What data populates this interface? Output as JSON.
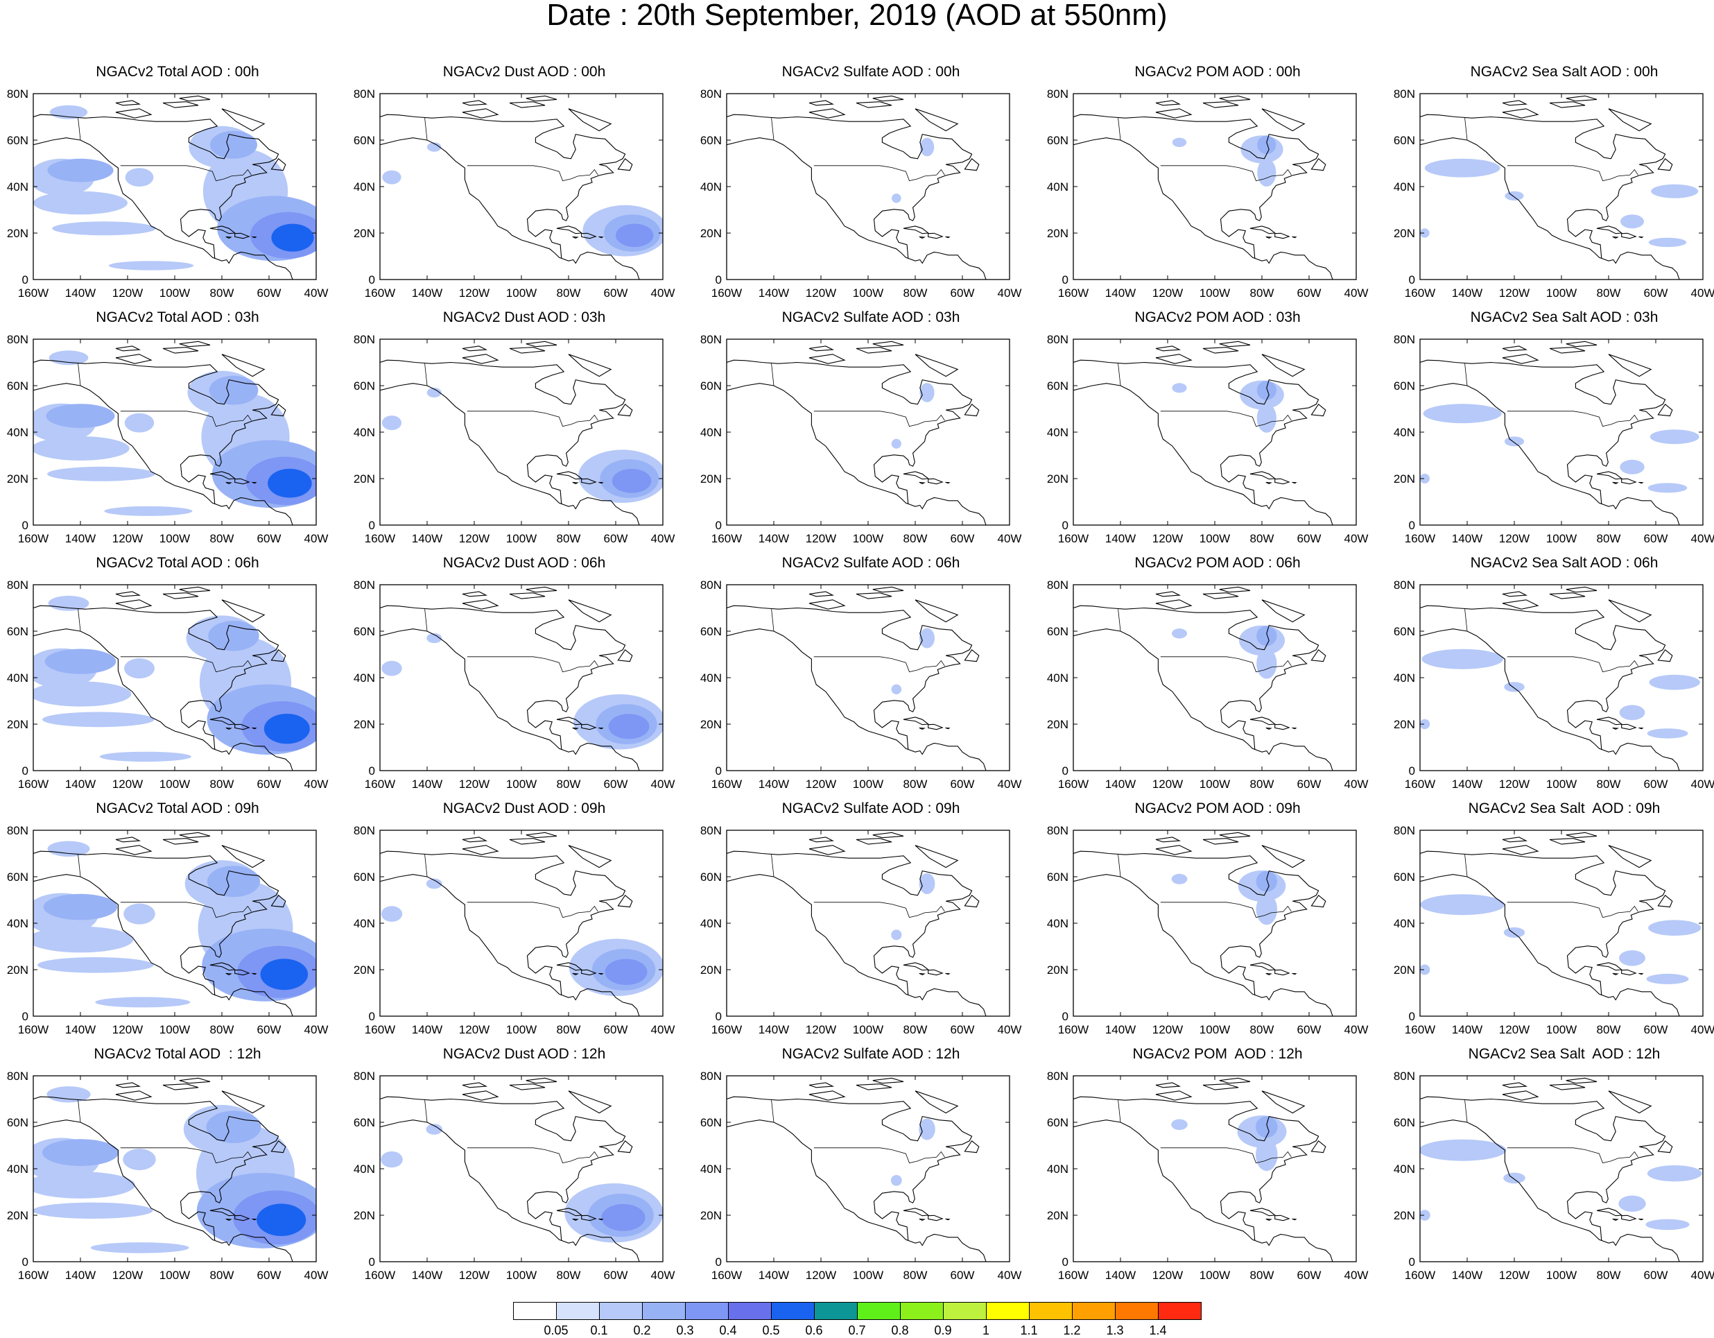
{
  "title": "Date : 20th September, 2019 (AOD at 550nm)",
  "map": {
    "x_ticks": [
      "160W",
      "140W",
      "120W",
      "100W",
      "80W",
      "60W",
      "40W"
    ],
    "y_ticks": [
      "0",
      "20N",
      "40N",
      "60N",
      "80N"
    ],
    "lon_range": [
      -160,
      -40
    ],
    "lat_range": [
      0,
      80
    ]
  },
  "panels": [
    [
      {
        "title": "NGACv2 Total AOD : 00h",
        "field": "total"
      },
      {
        "title": "NGACv2 Dust AOD : 00h",
        "field": "dust"
      },
      {
        "title": "NGACv2 Sulfate AOD : 00h",
        "field": "sulfate"
      },
      {
        "title": "NGACv2 POM AOD : 00h",
        "field": "pom"
      },
      {
        "title": "NGACv2 Sea Salt AOD : 00h",
        "field": "seasalt"
      }
    ],
    [
      {
        "title": "NGACv2 Total AOD : 03h",
        "field": "total"
      },
      {
        "title": "NGACv2 Dust AOD : 03h",
        "field": "dust"
      },
      {
        "title": "NGACv2 Sulfate AOD : 03h",
        "field": "sulfate"
      },
      {
        "title": "NGACv2 POM AOD : 03h",
        "field": "pom"
      },
      {
        "title": "NGACv2 Sea Salt AOD : 03h",
        "field": "seasalt"
      }
    ],
    [
      {
        "title": "NGACv2 Total AOD : 06h",
        "field": "total"
      },
      {
        "title": "NGACv2 Dust AOD : 06h",
        "field": "dust"
      },
      {
        "title": "NGACv2 Sulfate AOD : 06h",
        "field": "sulfate"
      },
      {
        "title": "NGACv2 POM AOD : 06h",
        "field": "pom"
      },
      {
        "title": "NGACv2 Sea Salt AOD : 06h",
        "field": "seasalt"
      }
    ],
    [
      {
        "title": "NGACv2 Total AOD : 09h",
        "field": "total"
      },
      {
        "title": "NGACv2 Dust AOD : 09h",
        "field": "dust"
      },
      {
        "title": "NGACv2 Sulfate AOD : 09h",
        "field": "sulfate"
      },
      {
        "title": "NGACv2 POM AOD : 09h",
        "field": "pom"
      },
      {
        "title": "NGACv2 Sea Salt  AOD : 09h",
        "field": "seasalt"
      }
    ],
    [
      {
        "title": "NGACv2 Total AOD  : 12h",
        "field": "total"
      },
      {
        "title": "NGACv2 Dust AOD : 12h",
        "field": "dust"
      },
      {
        "title": "NGACv2 Sulfate AOD : 12h",
        "field": "sulfate"
      },
      {
        "title": "NGACv2 POM  AOD : 12h",
        "field": "pom"
      },
      {
        "title": "NGACv2 Sea Salt  AOD : 12h",
        "field": "seasalt"
      }
    ]
  ],
  "colorbar": {
    "labels": [
      "0.05",
      "0.1",
      "0.2",
      "0.3",
      "0.4",
      "0.5",
      "0.6",
      "0.7",
      "0.8",
      "0.9",
      "1",
      "1.1",
      "1.2",
      "1.3",
      "1.4"
    ],
    "colors": [
      "#ffffff",
      "#d6e2fb",
      "#b6c9f8",
      "#98b2f6",
      "#7e96f4",
      "#6870ec",
      "#1a63f0",
      "#0d9696",
      "#5ff01a",
      "#8cf01a",
      "#bef03e",
      "#ffff00",
      "#ffc200",
      "#ffa000",
      "#ff7800",
      "#ff2a10"
    ]
  },
  "aerosol_fields": {
    "total": [
      {
        "lon": -50,
        "lat": 18,
        "value": 0.5,
        "rlon": 9,
        "rlat": 6
      },
      {
        "lon": -52,
        "lat": 19,
        "value": 0.3,
        "rlon": 16,
        "rlat": 10
      },
      {
        "lon": -58,
        "lat": 22,
        "value": 0.2,
        "rlon": 24,
        "rlat": 14
      },
      {
        "lon": -70,
        "lat": 38,
        "value": 0.1,
        "rlon": 18,
        "rlat": 18
      },
      {
        "lon": -75,
        "lat": 58,
        "value": 0.2,
        "rlon": 10,
        "rlat": 6
      },
      {
        "lon": -80,
        "lat": 57,
        "value": 0.1,
        "rlon": 14,
        "rlat": 9
      },
      {
        "lon": -140,
        "lat": 47,
        "value": 0.2,
        "rlon": 14,
        "rlat": 5
      },
      {
        "lon": -148,
        "lat": 44,
        "value": 0.1,
        "rlon": 14,
        "rlat": 8
      },
      {
        "lon": -140,
        "lat": 33,
        "value": 0.1,
        "rlon": 20,
        "rlat": 5
      },
      {
        "lon": -130,
        "lat": 22,
        "value": 0.1,
        "rlon": 22,
        "rlat": 3
      },
      {
        "lon": -145,
        "lat": 72,
        "value": 0.1,
        "rlon": 8,
        "rlat": 3
      },
      {
        "lon": -110,
        "lat": 6,
        "value": 0.1,
        "rlon": 18,
        "rlat": 2
      },
      {
        "lon": -115,
        "lat": 44,
        "value": 0.1,
        "rlon": 6,
        "rlat": 4
      }
    ],
    "dust": [
      {
        "lon": -52,
        "lat": 19,
        "value": 0.3,
        "rlon": 8,
        "rlat": 5
      },
      {
        "lon": -53,
        "lat": 20,
        "value": 0.2,
        "rlon": 12,
        "rlat": 8
      },
      {
        "lon": -56,
        "lat": 21,
        "value": 0.1,
        "rlon": 18,
        "rlat": 11
      },
      {
        "lon": -155,
        "lat": 44,
        "value": 0.1,
        "rlon": 4,
        "rlat": 3
      },
      {
        "lon": -137,
        "lat": 57,
        "value": 0.1,
        "rlon": 3,
        "rlat": 2
      }
    ],
    "sulfate": [
      {
        "lon": -75,
        "lat": 57,
        "value": 0.1,
        "rlon": 3,
        "rlat": 4
      },
      {
        "lon": -88,
        "lat": 35,
        "value": 0.1,
        "rlon": 2,
        "rlat": 2
      }
    ],
    "pom": [
      {
        "lon": -78,
        "lat": 58,
        "value": 0.2,
        "rlon": 4,
        "rlat": 4
      },
      {
        "lon": -80,
        "lat": 56,
        "value": 0.1,
        "rlon": 9,
        "rlat": 6
      },
      {
        "lon": -78,
        "lat": 46,
        "value": 0.1,
        "rlon": 4,
        "rlat": 6
      },
      {
        "lon": -115,
        "lat": 59,
        "value": 0.1,
        "rlon": 3,
        "rlat": 2
      }
    ],
    "seasalt": [
      {
        "lon": -142,
        "lat": 48,
        "value": 0.1,
        "rlon": 16,
        "rlat": 4
      },
      {
        "lon": -52,
        "lat": 38,
        "value": 0.1,
        "rlon": 10,
        "rlat": 3
      },
      {
        "lon": -55,
        "lat": 16,
        "value": 0.1,
        "rlon": 8,
        "rlat": 2
      },
      {
        "lon": -70,
        "lat": 25,
        "value": 0.1,
        "rlon": 5,
        "rlat": 3
      },
      {
        "lon": -120,
        "lat": 36,
        "value": 0.1,
        "rlon": 4,
        "rlat": 2
      },
      {
        "lon": -158,
        "lat": 20,
        "value": 0.1,
        "rlon": 2,
        "rlat": 2
      }
    ]
  }
}
